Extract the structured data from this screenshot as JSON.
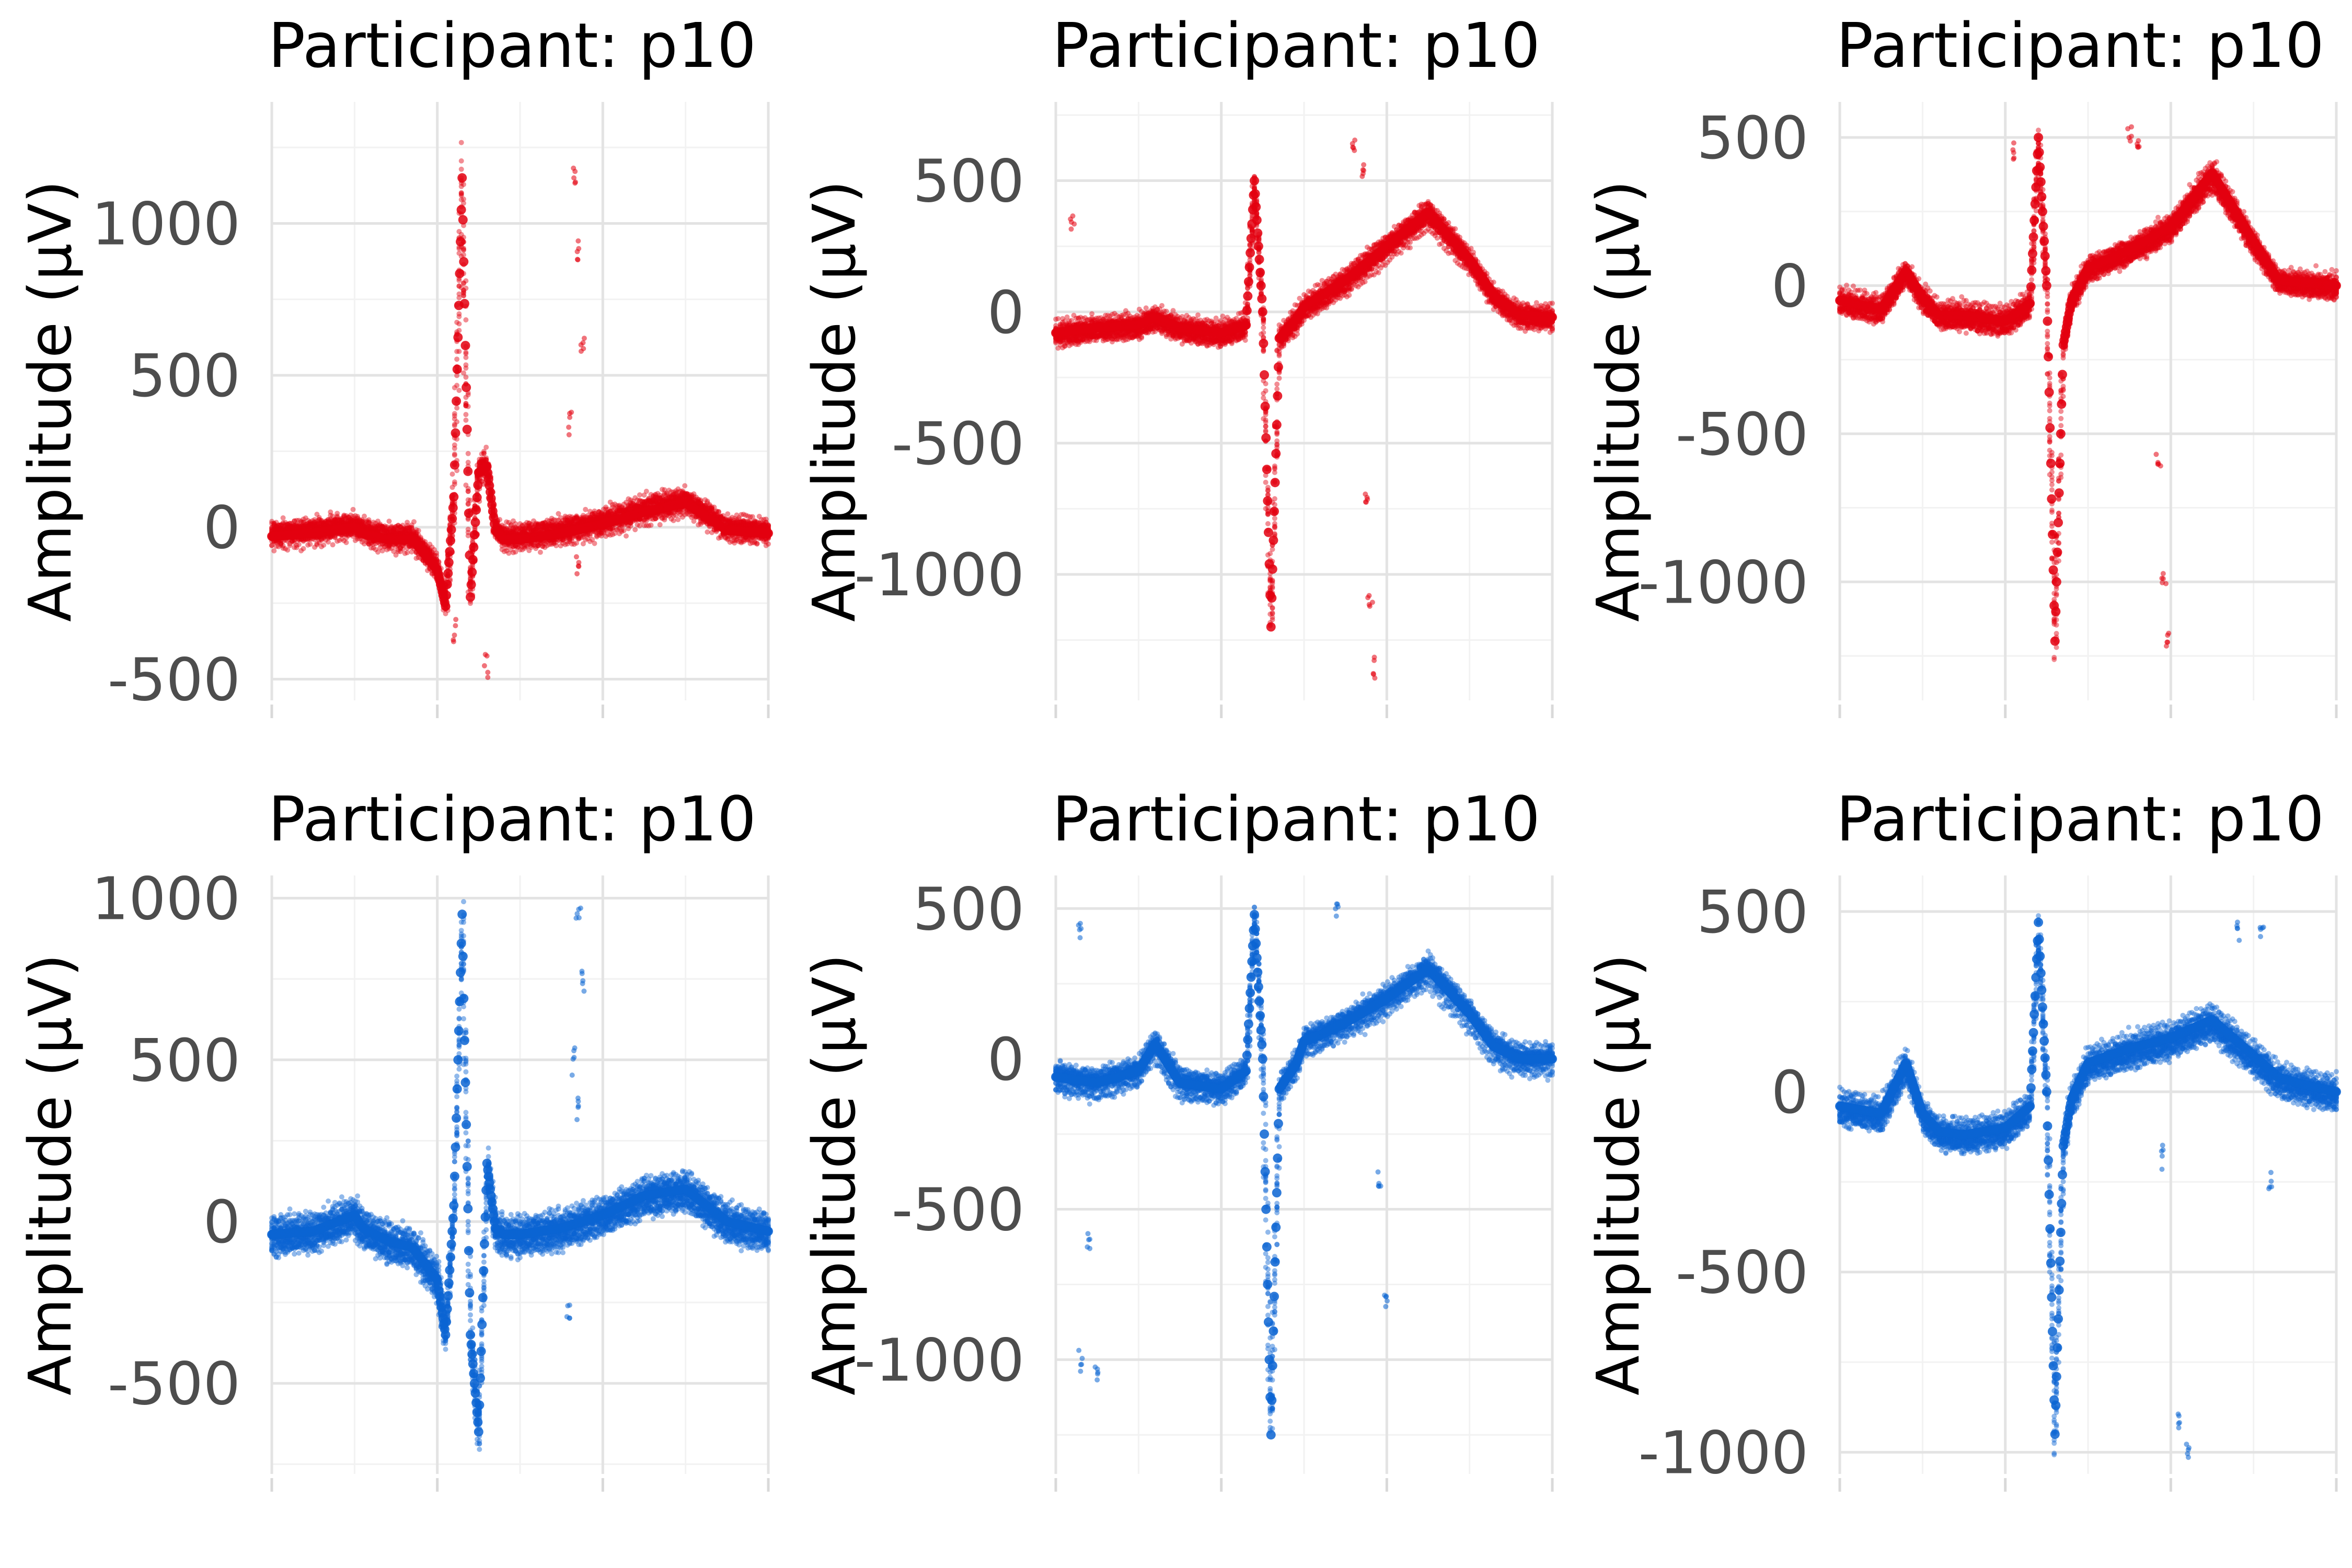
{
  "chart_data": [
    {
      "type": "scatter",
      "title": "Participant: p10",
      "ylabel": "Amplitude (µV)",
      "color": "#e3000f",
      "ylim": [
        -570,
        1400
      ],
      "yticks": [
        -500,
        0,
        500,
        1000
      ],
      "ytick_labels": [
        "-500",
        "0",
        "500",
        "1000"
      ],
      "x_domain": [
        0,
        6
      ],
      "waveform": {
        "x": [
          0,
          0.5,
          1.0,
          1.1,
          1.4,
          1.7,
          2.0,
          2.1,
          2.2,
          2.3,
          2.4,
          2.5,
          2.6,
          2.7,
          2.8,
          3.0,
          3.5,
          4.0,
          4.5,
          5.0,
          5.5,
          6.0
        ],
        "y": [
          -30,
          -20,
          0,
          -20,
          -40,
          -40,
          -140,
          -260,
          100,
          1150,
          -230,
          180,
          200,
          -10,
          -40,
          -40,
          -20,
          10,
          50,
          80,
          -10,
          -20
        ]
      },
      "spread": 55,
      "outliers": [
        [
          3.65,
          1150
        ],
        [
          3.7,
          900
        ],
        [
          3.75,
          600
        ],
        [
          3.6,
          350
        ],
        [
          3.7,
          -120
        ],
        [
          2.6,
          -450
        ],
        [
          2.2,
          -350
        ]
      ]
    },
    {
      "type": "scatter",
      "title": "Participant: p10",
      "ylabel": "Amplitude (µV)",
      "color": "#e3000f",
      "ylim": [
        -1480,
        800
      ],
      "yticks": [
        -1000,
        -500,
        0,
        500
      ],
      "ytick_labels": [
        "-1000",
        "-500",
        "0",
        "500"
      ],
      "x_domain": [
        0,
        6
      ],
      "waveform": {
        "x": [
          0,
          0.5,
          1.0,
          1.2,
          1.5,
          2.0,
          2.3,
          2.4,
          2.5,
          2.6,
          2.7,
          2.9,
          3.0,
          3.2,
          3.5,
          4.0,
          4.5,
          5.0,
          5.3,
          5.6,
          6.0
        ],
        "y": [
          -80,
          -60,
          -50,
          -20,
          -60,
          -80,
          -50,
          500,
          0,
          -1200,
          -100,
          -30,
          20,
          60,
          120,
          250,
          380,
          200,
          60,
          -10,
          -20
        ]
      },
      "spread": 50,
      "outliers": [
        [
          3.6,
          650
        ],
        [
          3.7,
          550
        ],
        [
          3.8,
          -1100
        ],
        [
          3.85,
          -1350
        ],
        [
          3.75,
          -700
        ],
        [
          0.2,
          350
        ]
      ]
    },
    {
      "type": "scatter",
      "title": "Participant: p10",
      "ylabel": "Amplitude (µV)",
      "color": "#e3000f",
      "ylim": [
        -1400,
        620
      ],
      "yticks": [
        -1000,
        -500,
        0,
        500
      ],
      "ytick_labels": [
        "-1000",
        "-500",
        "0",
        "500"
      ],
      "x_domain": [
        0,
        6
      ],
      "waveform": {
        "x": [
          0,
          0.5,
          0.8,
          1.0,
          1.2,
          1.5,
          2.0,
          2.3,
          2.4,
          2.5,
          2.6,
          2.7,
          2.8,
          3.0,
          3.5,
          4.0,
          4.5,
          5.0,
          5.3,
          5.6,
          6.0
        ],
        "y": [
          -50,
          -80,
          50,
          -40,
          -100,
          -100,
          -120,
          -60,
          500,
          0,
          -1200,
          -200,
          -50,
          60,
          120,
          200,
          380,
          150,
          20,
          10,
          0
        ]
      },
      "spread": 50,
      "outliers": [
        [
          3.5,
          520
        ],
        [
          3.6,
          480
        ],
        [
          3.9,
          -1000
        ],
        [
          3.95,
          -1200
        ],
        [
          3.85,
          -600
        ],
        [
          2.1,
          450
        ]
      ]
    },
    {
      "type": "scatter",
      "title": "Participant: p10",
      "ylabel": "Amplitude (µV)",
      "color": "#0a64d2",
      "ylim": [
        -780,
        1070
      ],
      "yticks": [
        -500,
        0,
        500,
        1000
      ],
      "ytick_labels": [
        "-500",
        "0",
        "500",
        "1000"
      ],
      "x_domain": [
        0,
        6
      ],
      "waveform": {
        "x": [
          0,
          0.5,
          1.0,
          1.1,
          1.4,
          1.7,
          2.0,
          2.1,
          2.2,
          2.3,
          2.4,
          2.5,
          2.6,
          2.7,
          2.8,
          3.0,
          3.5,
          4.0,
          4.5,
          5.0,
          5.5,
          6.0
        ],
        "y": [
          -40,
          -30,
          20,
          -20,
          -60,
          -80,
          -180,
          -350,
          50,
          950,
          -350,
          -650,
          180,
          -20,
          -40,
          -40,
          -20,
          20,
          80,
          100,
          0,
          -30
        ]
      },
      "spread": 65,
      "outliers": [
        [
          3.7,
          950
        ],
        [
          3.75,
          750
        ],
        [
          3.65,
          500
        ],
        [
          3.7,
          350
        ],
        [
          3.6,
          -280
        ]
      ]
    },
    {
      "type": "scatter",
      "title": "Participant: p10",
      "ylabel": "Amplitude (µV)",
      "color": "#0a64d2",
      "ylim": [
        -1380,
        610
      ],
      "yticks": [
        -1000,
        -500,
        0,
        500
      ],
      "ytick_labels": [
        "-1000",
        "-500",
        "0",
        "500"
      ],
      "x_domain": [
        0,
        6
      ],
      "waveform": {
        "x": [
          0,
          0.5,
          1.0,
          1.2,
          1.5,
          2.0,
          2.3,
          2.4,
          2.5,
          2.6,
          2.7,
          2.9,
          3.0,
          3.2,
          3.5,
          4.0,
          4.5,
          5.0,
          5.3,
          5.6,
          6.0
        ],
        "y": [
          -60,
          -80,
          -40,
          50,
          -80,
          -100,
          -40,
          480,
          0,
          -1250,
          -100,
          -20,
          60,
          80,
          120,
          200,
          300,
          150,
          40,
          0,
          0
        ]
      },
      "spread": 55,
      "outliers": [
        [
          0.3,
          430
        ],
        [
          0.4,
          -600
        ],
        [
          0.3,
          -1000
        ],
        [
          0.5,
          -1050
        ],
        [
          3.4,
          500
        ],
        [
          3.9,
          -400
        ],
        [
          4.0,
          -800
        ]
      ]
    },
    {
      "type": "scatter",
      "title": "Participant: p10",
      "ylabel": "Amplitude (µV)",
      "color": "#0a64d2",
      "ylim": [
        -1060,
        600
      ],
      "yticks": [
        -1000,
        -500,
        0,
        500
      ],
      "ytick_labels": [
        "-1000",
        "-500",
        "0",
        "500"
      ],
      "x_domain": [
        0,
        6
      ],
      "waveform": {
        "x": [
          0,
          0.5,
          0.8,
          1.0,
          1.2,
          1.5,
          2.0,
          2.3,
          2.4,
          2.5,
          2.6,
          2.7,
          2.8,
          3.0,
          3.5,
          4.0,
          4.5,
          5.0,
          5.3,
          5.6,
          6.0
        ],
        "y": [
          -40,
          -60,
          80,
          -60,
          -110,
          -120,
          -100,
          -40,
          470,
          0,
          -950,
          -150,
          -20,
          80,
          120,
          150,
          200,
          100,
          40,
          20,
          0
        ]
      },
      "spread": 50,
      "outliers": [
        [
          4.1,
          -900
        ],
        [
          4.2,
          -1000
        ],
        [
          4.8,
          450
        ],
        [
          5.1,
          450
        ],
        [
          5.2,
          -250
        ],
        [
          3.9,
          -180
        ]
      ]
    }
  ]
}
